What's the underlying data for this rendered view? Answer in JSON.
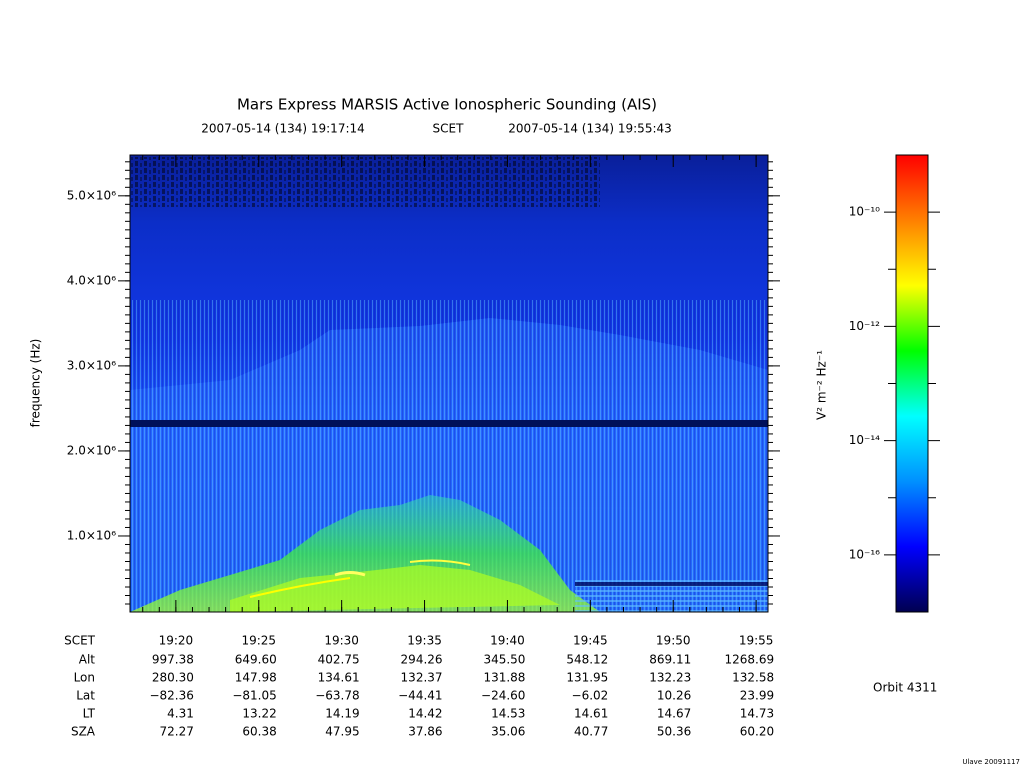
{
  "chart_data": {
    "type": "spectrogram",
    "title": "Mars Express MARSIS Active Ionospheric Sounding (AIS)",
    "time_range": {
      "start": "2007-05-14 (134) 19:17:14",
      "frame": "SCET",
      "end": "2007-05-14 (134) 19:55:43"
    },
    "ylabel": "frequency (Hz)",
    "xlim": [
      1157.233,
      1195.717
    ],
    "xticks": [
      {
        "value": 1160,
        "label": "19:20"
      },
      {
        "value": 1165,
        "label": "19:25"
      },
      {
        "value": 1170,
        "label": "19:30"
      },
      {
        "value": 1175,
        "label": "19:35"
      },
      {
        "value": 1180,
        "label": "19:40"
      },
      {
        "value": 1185,
        "label": "19:45"
      },
      {
        "value": 1190,
        "label": "19:50"
      },
      {
        "value": 1195,
        "label": "19:55"
      }
    ],
    "xminorticks": [
      1158,
      1159,
      1160,
      1161,
      1162,
      1163,
      1164,
      1165,
      1166,
      1167,
      1168,
      1169,
      1170,
      1171,
      1172,
      1173,
      1174,
      1175,
      1176,
      1177,
      1178,
      1179,
      1180,
      1181,
      1182,
      1183,
      1184,
      1185,
      1186,
      1187,
      1188,
      1189,
      1190,
      1191,
      1192,
      1193,
      1194,
      1195
    ],
    "ylim": [
      106000,
      5480000
    ],
    "yticks": [
      {
        "value": 1000000,
        "label": "1.0×10⁶"
      },
      {
        "value": 2000000,
        "label": "2.0×10⁶"
      },
      {
        "value": 3000000,
        "label": "3.0×10⁶"
      },
      {
        "value": 4000000,
        "label": "4.0×10⁶"
      },
      {
        "value": 5000000,
        "label": "5.0×10⁶"
      }
    ],
    "yminorticks": [
      200000,
      300000,
      400000,
      500000,
      600000,
      700000,
      800000,
      900000,
      1000000,
      1100000,
      1200000,
      1300000,
      1400000,
      1500000,
      1600000,
      1700000,
      1800000,
      1900000,
      2000000,
      2100000,
      2200000,
      2300000,
      2400000,
      2500000,
      2600000,
      2700000,
      2800000,
      2900000,
      3000000,
      3100000,
      3200000,
      3300000,
      3400000,
      3500000,
      3600000,
      3700000,
      3800000,
      3900000,
      4000000,
      4100000,
      4200000,
      4300000,
      4400000,
      4500000,
      4600000,
      4700000,
      4800000,
      4900000,
      5000000,
      5100000,
      5200000,
      5300000,
      5400000
    ],
    "colorbar": {
      "label": "V² m⁻² Hz⁻¹",
      "scale": "log",
      "lim": [
        1e-17,
        1e-09
      ],
      "ticks": [
        {
          "value": 1e-10,
          "label": "10⁻¹⁰"
        },
        {
          "value": 1e-12,
          "label": "10⁻¹²"
        },
        {
          "value": 1e-14,
          "label": "10⁻¹⁴"
        },
        {
          "value": 1e-16,
          "label": "10⁻¹⁶"
        }
      ],
      "minorticks": [
        1e-11,
        1e-13,
        1e-15
      ],
      "colors": [
        "#000050",
        "#0000ff",
        "#0090ff",
        "#00ffff",
        "#00ff00",
        "#ffff00",
        "#ff8000",
        "#ff0000"
      ]
    },
    "ephemeris": {
      "time_label": "SCET",
      "labels": [
        "Alt",
        "Lon",
        "Lat",
        "LT",
        "SZA"
      ],
      "rows": [
        [
          "997.38",
          "649.60",
          "402.75",
          "294.26",
          "345.50",
          "548.12",
          "869.11",
          "1268.69"
        ],
        [
          "280.30",
          "147.98",
          "134.61",
          "132.37",
          "131.88",
          "131.95",
          "132.23",
          "132.58"
        ],
        [
          "−82.36",
          "−81.05",
          "−63.78",
          "−44.41",
          "−24.60",
          "−6.02",
          "10.26",
          "23.99"
        ],
        [
          "4.31",
          "13.22",
          "14.19",
          "14.42",
          "14.53",
          "14.61",
          "14.67",
          "14.73"
        ],
        [
          "72.27",
          "60.38",
          "47.95",
          "37.86",
          "35.06",
          "40.77",
          "50.36",
          "60.20"
        ]
      ]
    },
    "orbit": "Orbit 4311",
    "version": "Ulave 20091117"
  }
}
